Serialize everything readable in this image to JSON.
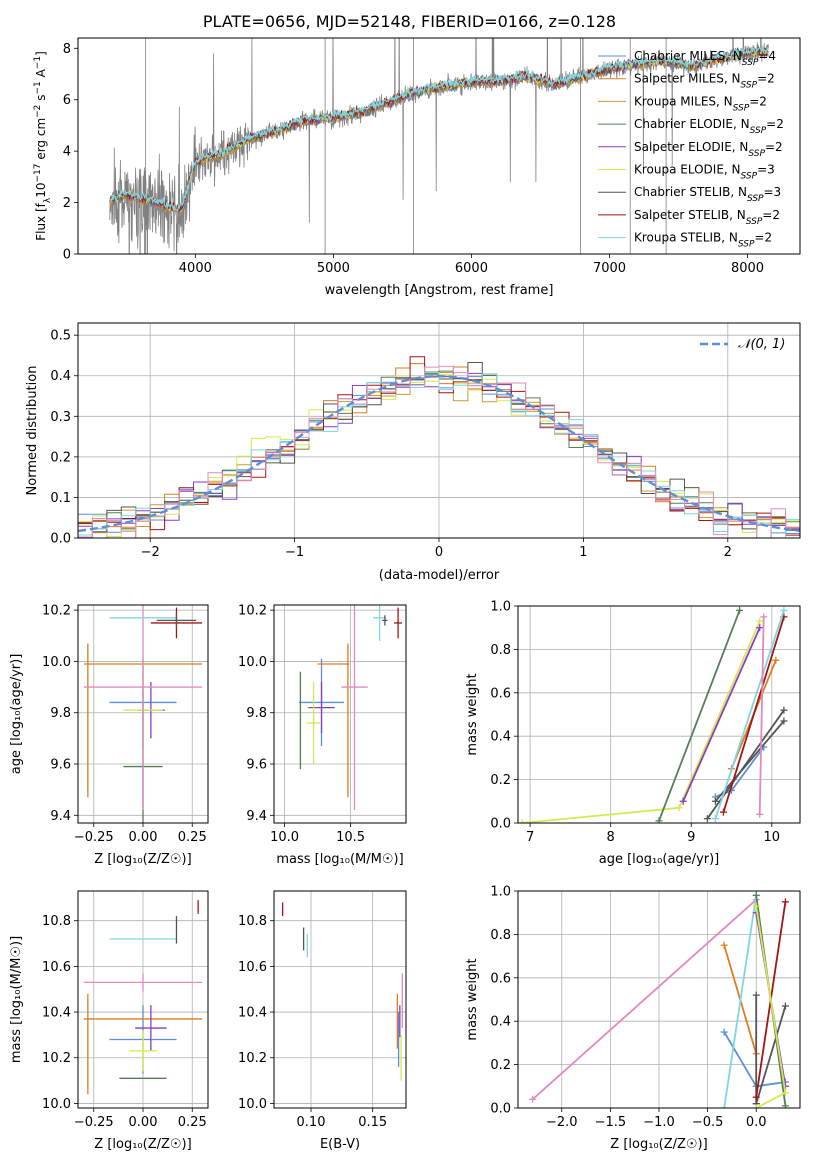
{
  "figure": {
    "title": "PLATE=0656, MJD=52148, FIBERID=0166, z=0.128"
  },
  "colors": {
    "chabrier_miles": "#5b8fd8",
    "salpeter_miles": "#e07b22",
    "kroupa_miles": "#c89a3a",
    "chabrier_elodie": "#557f55",
    "salpeter_elodie": "#8a3fc0",
    "kroupa_elodie": "#d6e850",
    "chabrier_stelib": "#555555",
    "salpeter_stelib": "#a31515",
    "kroupa_stelib": "#7fd6e0",
    "data_spectrum": "#808080",
    "pink": "#e389c0",
    "gaussian": "#5b8fd8"
  },
  "chart_data": [
    {
      "id": "spectrum",
      "type": "line",
      "xlabel": "wavelength [Angstrom, rest frame]",
      "ylabel": "Flux [f_λ10^-17 erg cm^-2 s^-1 A^-1]",
      "ylabel_parts": {
        "base": "Flux [f",
        "sub1": "λ",
        "mid": "10",
        "sup1": "−17",
        "mid2": " erg cm",
        "sup2": "−2",
        "mid3": " s",
        "sup3": "−1",
        "mid4": " A",
        "sup4": "−1",
        "end": "]"
      },
      "xlim": [
        3150,
        8380
      ],
      "ylim": [
        0,
        8.4
      ],
      "xticks": [
        4000,
        5000,
        6000,
        7000,
        8000
      ],
      "yticks": [
        0,
        2,
        4,
        6,
        8
      ],
      "grid": false,
      "legend_placement": "upper-right",
      "x": [
        3380,
        3500,
        3700,
        3900,
        4000,
        4200,
        4400,
        4600,
        4800,
        5000,
        5200,
        5400,
        5600,
        5800,
        6000,
        6200,
        6400,
        6600,
        6800,
        7000,
        7200,
        7400,
        7600,
        7800,
        8000,
        8150
      ],
      "y": [
        2.1,
        2.3,
        2.0,
        1.7,
        3.6,
        3.9,
        4.5,
        4.8,
        5.2,
        5.3,
        5.5,
        5.9,
        6.3,
        6.5,
        6.7,
        6.7,
        6.9,
        6.6,
        6.9,
        7.2,
        7.4,
        7.5,
        7.3,
        7.6,
        7.8,
        7.9
      ],
      "series": [
        {
          "name": "Chabrier MILES",
          "nssp": "4",
          "color_key": "chabrier_miles"
        },
        {
          "name": "Salpeter MILES",
          "nssp": "2",
          "color_key": "salpeter_miles"
        },
        {
          "name": "Kroupa MILES",
          "nssp": "2",
          "color_key": "kroupa_miles"
        },
        {
          "name": "Chabrier ELODIE",
          "nssp": "2",
          "color_key": "chabrier_elodie"
        },
        {
          "name": "Salpeter ELODIE",
          "nssp": "2",
          "color_key": "salpeter_elodie"
        },
        {
          "name": "Kroupa ELODIE",
          "nssp": "3",
          "color_key": "kroupa_elodie"
        },
        {
          "name": "Chabrier STELIB",
          "nssp": "3",
          "color_key": "chabrier_stelib"
        },
        {
          "name": "Salpeter STELIB",
          "nssp": "2",
          "color_key": "salpeter_stelib"
        },
        {
          "name": "Kroupa STELIB",
          "nssp": "2",
          "color_key": "kroupa_stelib"
        }
      ]
    },
    {
      "id": "residuals",
      "type": "line",
      "xlabel": "(data-model)/error",
      "ylabel": "Normed distribution",
      "xlim": [
        -2.5,
        2.5
      ],
      "ylim": [
        0,
        0.53
      ],
      "xticks": [
        -2,
        -1,
        0,
        1,
        2
      ],
      "yticks": [
        0.0,
        0.1,
        0.2,
        0.3,
        0.4,
        0.5
      ],
      "ytick_labels": [
        "0.0",
        "0.1",
        "0.2",
        "0.3",
        "0.4",
        "0.5"
      ],
      "xtick_labels": [
        "−2",
        "−1",
        "0",
        "1",
        "2"
      ],
      "grid": true,
      "legend": "𝒩(0, 1)",
      "legend_placement": "upper-right",
      "histogram_bin_width": 0.1,
      "gaussian": {
        "mean": 0,
        "sigma": 1
      }
    },
    {
      "id": "age_vs_Z",
      "type": "scatter",
      "xlabel": "Z [log₁₀(Z/Z☉)]",
      "ylabel": "age  [log₁₀(age/yr)]",
      "xlim": [
        -0.33,
        0.33
      ],
      "ylim": [
        9.37,
        10.22
      ],
      "xticks": [
        -0.25,
        0.0,
        0.25
      ],
      "xtick_labels": [
        "−0.25",
        "0.00",
        "0.25"
      ],
      "yticks": [
        9.4,
        9.6,
        9.8,
        10.0,
        10.2
      ],
      "ytick_labels": [
        "9.4",
        "9.6",
        "9.8",
        "10.0",
        "10.2"
      ],
      "grid": true,
      "points": [
        {
          "x": 0.0,
          "y": 9.84,
          "xerr": 0.17,
          "yerr": 0.17,
          "color_key": "chabrier_miles"
        },
        {
          "x": 0.0,
          "y": 9.99,
          "xerr": 0.3,
          "yerr": 0.0,
          "color_key": "salpeter_miles"
        },
        {
          "x": -0.28,
          "y": 9.77,
          "xerr": 0.0,
          "yerr": 0.3,
          "color_key": "salpeter_miles"
        },
        {
          "x": 0.0,
          "y": 9.59,
          "xerr": 0.1,
          "yerr": 0.3,
          "color_key": "chabrier_elodie"
        },
        {
          "x": 0.04,
          "y": 9.81,
          "xerr": 0.07,
          "yerr": 0.11,
          "color_key": "salpeter_elodie"
        },
        {
          "x": 0.0,
          "y": 9.81,
          "xerr": 0.1,
          "yerr": 0.21,
          "color_key": "kroupa_elodie"
        },
        {
          "x": 0.0,
          "y": 9.9,
          "xerr": 0.3,
          "yerr": 0.48,
          "color_key": "pink"
        },
        {
          "x": 0.0,
          "y": 10.17,
          "xerr": 0.17,
          "yerr": 0.0,
          "color_key": "kroupa_stelib"
        },
        {
          "x": 0.17,
          "y": 10.15,
          "xerr": 0.13,
          "yerr": 0.06,
          "color_key": "salpeter_stelib"
        },
        {
          "x": 0.17,
          "y": 10.16,
          "xerr": 0.1,
          "yerr": 0.03,
          "color_key": "chabrier_stelib"
        }
      ]
    },
    {
      "id": "age_vs_mass",
      "type": "scatter",
      "xlabel": "mass [log₁₀(M/M☉)]",
      "ylabel": "",
      "xlim": [
        9.92,
        10.92
      ],
      "ylim": [
        9.37,
        10.22
      ],
      "xticks": [
        10.0,
        10.5
      ],
      "xtick_labels": [
        "10.0",
        "10.5"
      ],
      "yticks": [
        9.4,
        9.6,
        9.8,
        10.0,
        10.2
      ],
      "ytick_labels": [
        "9.4",
        "9.6",
        "9.8",
        "10.0",
        "10.2"
      ],
      "grid": true,
      "points": [
        {
          "x": 10.28,
          "y": 9.84,
          "xerr": 0.17,
          "yerr": 0.17,
          "color_key": "chabrier_miles"
        },
        {
          "x": 10.37,
          "y": 9.99,
          "xerr": 0.12,
          "yerr": 0.0,
          "color_key": "salpeter_miles"
        },
        {
          "x": 10.48,
          "y": 9.77,
          "xerr": 0.0,
          "yerr": 0.3,
          "color_key": "salpeter_miles"
        },
        {
          "x": 10.12,
          "y": 9.77,
          "xerr": 0.0,
          "yerr": 0.19,
          "color_key": "chabrier_elodie"
        },
        {
          "x": 10.28,
          "y": 9.82,
          "xerr": 0.1,
          "yerr": 0.1,
          "color_key": "salpeter_elodie"
        },
        {
          "x": 10.22,
          "y": 9.76,
          "xerr": 0.05,
          "yerr": 0.16,
          "color_key": "kroupa_elodie"
        },
        {
          "x": 10.53,
          "y": 9.9,
          "xerr": 0.1,
          "yerr": 0.48,
          "color_key": "pink"
        },
        {
          "x": 10.72,
          "y": 10.17,
          "xerr": 0.05,
          "yerr": 0.09,
          "color_key": "kroupa_stelib"
        },
        {
          "x": 10.86,
          "y": 10.15,
          "xerr": 0.03,
          "yerr": 0.06,
          "color_key": "salpeter_stelib"
        },
        {
          "x": 10.76,
          "y": 10.16,
          "xerr": 0.02,
          "yerr": 0.02,
          "color_key": "chabrier_stelib"
        }
      ]
    },
    {
      "id": "mass_weight_vs_age",
      "type": "line",
      "xlabel": "age  [log₁₀(age/yr)]",
      "ylabel": "mass weight",
      "xlim": [
        6.85,
        10.35
      ],
      "ylim": [
        0.0,
        1.0
      ],
      "xticks": [
        7,
        8,
        9,
        10
      ],
      "yticks": [
        0.0,
        0.2,
        0.4,
        0.6,
        0.8,
        1.0
      ],
      "ytick_labels": [
        "0.0",
        "0.2",
        "0.4",
        "0.6",
        "0.8",
        "1.0"
      ],
      "grid": true,
      "series": [
        {
          "color_key": "kroupa_elodie",
          "x": [
            6.9,
            8.85,
            9.85
          ],
          "y": [
            0.0,
            0.07,
            0.93
          ]
        },
        {
          "color_key": "chabrier_elodie",
          "x": [
            8.6,
            9.6
          ],
          "y": [
            0.01,
            0.98
          ]
        },
        {
          "color_key": "salpeter_elodie",
          "x": [
            8.9,
            9.85
          ],
          "y": [
            0.1,
            0.9
          ]
        },
        {
          "color_key": "salpeter_miles",
          "x": [
            9.5,
            10.05
          ],
          "y": [
            0.25,
            0.75
          ]
        },
        {
          "color_key": "chabrier_miles",
          "x": [
            9.9,
            9.5,
            9.3
          ],
          "y": [
            0.35,
            0.15,
            0.12
          ]
        },
        {
          "color_key": "chabrier_stelib",
          "x": [
            9.2,
            10.15
          ],
          "y": [
            0.02,
            0.52
          ]
        },
        {
          "color_key": "chabrier_stelib",
          "x": [
            9.3,
            10.15
          ],
          "y": [
            0.1,
            0.47
          ]
        },
        {
          "color_key": "salpeter_stelib",
          "x": [
            9.4,
            10.15
          ],
          "y": [
            0.05,
            0.95
          ]
        },
        {
          "color_key": "kroupa_stelib",
          "x": [
            9.3,
            10.15
          ],
          "y": [
            0.02,
            0.98
          ]
        },
        {
          "color_key": "pink",
          "x": [
            9.85,
            9.9
          ],
          "y": [
            0.04,
            0.95
          ]
        }
      ]
    },
    {
      "id": "mass_vs_Z",
      "type": "scatter",
      "xlabel": "Z [log₁₀(Z/Z☉)]",
      "ylabel": "mass [log₁₀(M/M☉)]",
      "xlim": [
        -0.33,
        0.33
      ],
      "ylim": [
        9.98,
        10.93
      ],
      "xticks": [
        -0.25,
        0.0,
        0.25
      ],
      "xtick_labels": [
        "−0.25",
        "0.00",
        "0.25"
      ],
      "yticks": [
        10.0,
        10.2,
        10.4,
        10.6,
        10.8
      ],
      "ytick_labels": [
        "10.0",
        "10.2",
        "10.4",
        "10.6",
        "10.8"
      ],
      "grid": true,
      "points": [
        {
          "x": 0.0,
          "y": 10.28,
          "xerr": 0.17,
          "yerr": 0.15,
          "color_key": "chabrier_miles"
        },
        {
          "x": 0.0,
          "y": 10.37,
          "xerr": 0.3,
          "yerr": 0.0,
          "color_key": "salpeter_miles"
        },
        {
          "x": -0.28,
          "y": 10.26,
          "xerr": 0.0,
          "yerr": 0.22,
          "color_key": "salpeter_miles"
        },
        {
          "x": 0.0,
          "y": 10.11,
          "xerr": 0.12,
          "yerr": 0.0,
          "color_key": "chabrier_elodie"
        },
        {
          "x": 0.04,
          "y": 10.33,
          "xerr": 0.08,
          "yerr": 0.1,
          "color_key": "salpeter_elodie"
        },
        {
          "x": 0.0,
          "y": 10.23,
          "xerr": 0.07,
          "yerr": 0.09,
          "color_key": "kroupa_elodie"
        },
        {
          "x": 0.0,
          "y": 10.53,
          "xerr": 0.3,
          "yerr": 0.04,
          "color_key": "pink"
        },
        {
          "x": 0.0,
          "y": 10.72,
          "xerr": 0.17,
          "yerr": 0.0,
          "color_key": "kroupa_stelib"
        },
        {
          "x": 0.28,
          "y": 10.86,
          "xerr": 0.0,
          "yerr": 0.03,
          "color_key": "salpeter_stelib"
        },
        {
          "x": 0.17,
          "y": 10.76,
          "xerr": 0.0,
          "yerr": 0.06,
          "color_key": "chabrier_stelib"
        }
      ]
    },
    {
      "id": "mass_vs_ebv",
      "type": "scatter",
      "xlabel": "E(B-V)",
      "ylabel": "",
      "xlim": [
        0.07,
        0.177
      ],
      "ylim": [
        9.98,
        10.93
      ],
      "xticks": [
        0.1,
        0.15
      ],
      "xtick_labels": [
        "0.10",
        "0.15"
      ],
      "yticks": [
        10.0,
        10.2,
        10.4,
        10.6,
        10.8
      ],
      "ytick_labels": [
        "10.0",
        "10.2",
        "10.4",
        "10.6",
        "10.8"
      ],
      "grid": true,
      "points": [
        {
          "x": 0.077,
          "y": 10.85,
          "xerr": 0.0,
          "yerr": 0.03,
          "color_key": "salpeter_stelib"
        },
        {
          "x": 0.094,
          "y": 10.72,
          "xerr": 0.0,
          "yerr": 0.05,
          "color_key": "chabrier_stelib"
        },
        {
          "x": 0.097,
          "y": 10.69,
          "xerr": 0.0,
          "yerr": 0.05,
          "color_key": "kroupa_stelib"
        },
        {
          "x": 0.17,
          "y": 10.36,
          "xerr": 0.0,
          "yerr": 0.12,
          "color_key": "salpeter_miles"
        },
        {
          "x": 0.171,
          "y": 10.28,
          "xerr": 0.0,
          "yerr": 0.12,
          "color_key": "chabrier_miles"
        },
        {
          "x": 0.172,
          "y": 10.36,
          "xerr": 0.0,
          "yerr": 0.07,
          "color_key": "salpeter_elodie"
        },
        {
          "x": 0.173,
          "y": 10.2,
          "xerr": 0.0,
          "yerr": 0.1,
          "color_key": "kroupa_elodie"
        },
        {
          "x": 0.174,
          "y": 10.45,
          "xerr": 0.0,
          "yerr": 0.12,
          "color_key": "pink"
        }
      ]
    },
    {
      "id": "mass_weight_vs_Z",
      "type": "line",
      "xlabel": "Z [log₁₀(Z/Z☉)]",
      "ylabel": "mass weight",
      "xlim": [
        -2.45,
        0.45
      ],
      "ylim": [
        0.0,
        1.0
      ],
      "xticks": [
        -2.0,
        -1.5,
        -1.0,
        -0.5,
        0.0
      ],
      "xtick_labels": [
        "−2.0",
        "−1.5",
        "−1.0",
        "−0.5",
        "0.0"
      ],
      "yticks": [
        0.0,
        0.2,
        0.4,
        0.6,
        0.8,
        1.0
      ],
      "ytick_labels": [
        "0.0",
        "0.2",
        "0.4",
        "0.6",
        "0.8",
        "1.0"
      ],
      "grid": true,
      "series": [
        {
          "color_key": "pink",
          "x": [
            -2.3,
            0.0
          ],
          "y": [
            0.04,
            0.96
          ]
        },
        {
          "color_key": "salpeter_miles",
          "x": [
            -0.33,
            0.0
          ],
          "y": [
            0.75,
            0.25
          ]
        },
        {
          "color_key": "chabrier_miles",
          "x": [
            -0.33,
            0.0,
            0.3
          ],
          "y": [
            0.35,
            0.1,
            0.12
          ]
        },
        {
          "color_key": "kroupa_stelib",
          "x": [
            -0.33,
            0.0
          ],
          "y": [
            0.0,
            0.98
          ]
        },
        {
          "color_key": "chabrier_stelib",
          "x": [
            0.0,
            0.3
          ],
          "y": [
            0.02,
            0.47
          ]
        },
        {
          "color_key": "chabrier_stelib",
          "x": [
            0.0,
            0.0
          ],
          "y": [
            0.02,
            0.52
          ]
        },
        {
          "color_key": "salpeter_stelib",
          "x": [
            0.0,
            0.3
          ],
          "y": [
            0.05,
            0.95
          ]
        },
        {
          "color_key": "salpeter_elodie",
          "x": [
            0.0,
            0.3
          ],
          "y": [
            0.9,
            0.1
          ]
        },
        {
          "color_key": "chabrier_elodie",
          "x": [
            0.0,
            0.3
          ],
          "y": [
            0.98,
            0.01
          ]
        },
        {
          "color_key": "kroupa_elodie",
          "x": [
            0.0,
            0.3,
            0.0
          ],
          "y": [
            0.0,
            0.07,
            0.93
          ]
        }
      ]
    }
  ]
}
